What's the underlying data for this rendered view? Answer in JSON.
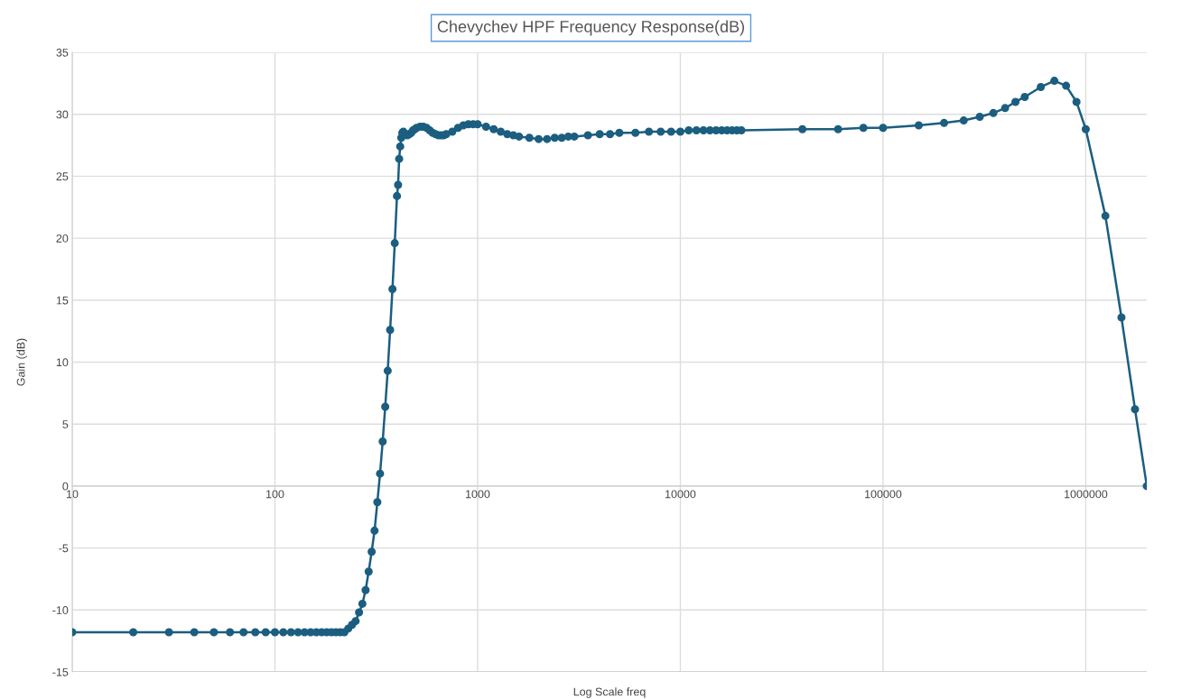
{
  "chart_data": {
    "type": "line",
    "title": "Chevychev HPF Frequency Response(dB)",
    "xlabel": "Log Scale freq",
    "ylabel": "Gain (dB)",
    "log": "x",
    "grid": true,
    "marker": "circle",
    "line_style": "solid",
    "xlim": [
      10,
      2000000
    ],
    "xticks": [
      10,
      100,
      1000,
      10000,
      100000,
      1000000
    ],
    "ylim": [
      -15,
      35
    ],
    "yticks": [
      -15,
      -10,
      -5,
      0,
      5,
      10,
      15,
      20,
      25,
      30,
      35
    ],
    "series": [
      {
        "color": "#1b5e80",
        "x": [
          10,
          20,
          30,
          40,
          50,
          60,
          70,
          80,
          90,
          100,
          110,
          120,
          130,
          140,
          150,
          160,
          170,
          180,
          190,
          200,
          210,
          220,
          230,
          240,
          250,
          260,
          270,
          280,
          290,
          300,
          310,
          320,
          330,
          340,
          350,
          360,
          370,
          380,
          390,
          400,
          405,
          410,
          415,
          420,
          425,
          430,
          440,
          450,
          460,
          470,
          480,
          490,
          500,
          520,
          540,
          560,
          580,
          600,
          620,
          640,
          660,
          680,
          700,
          750,
          800,
          850,
          900,
          950,
          1000,
          1100,
          1200,
          1300,
          1400,
          1500,
          1600,
          1800,
          2000,
          2200,
          2400,
          2600,
          2800,
          3000,
          3500,
          4000,
          4500,
          5000,
          6000,
          7000,
          8000,
          9000,
          10000,
          11000,
          12000,
          13000,
          14000,
          15000,
          16000,
          17000,
          18000,
          19000,
          20000,
          40000,
          60000,
          80000,
          100000,
          150000,
          200000,
          250000,
          300000,
          350000,
          400000,
          450000,
          500000,
          600000,
          700000,
          800000,
          900000,
          1000000,
          1250000,
          1500000,
          1750000,
          2000000
        ],
        "values": [
          -11.8,
          -11.8,
          -11.8,
          -11.8,
          -11.8,
          -11.8,
          -11.8,
          -11.8,
          -11.8,
          -11.8,
          -11.8,
          -11.8,
          -11.8,
          -11.8,
          -11.8,
          -11.8,
          -11.8,
          -11.8,
          -11.8,
          -11.8,
          -11.8,
          -11.8,
          -11.5,
          -11.2,
          -10.9,
          -10.2,
          -9.5,
          -8.4,
          -6.9,
          -5.3,
          -3.6,
          -1.3,
          1.0,
          3.6,
          6.4,
          9.3,
          12.6,
          15.9,
          19.6,
          23.4,
          24.3,
          26.4,
          27.4,
          28.1,
          28.5,
          28.6,
          28.4,
          28.3,
          28.4,
          28.5,
          28.7,
          28.8,
          28.9,
          29.0,
          29.0,
          28.9,
          28.7,
          28.5,
          28.4,
          28.3,
          28.3,
          28.3,
          28.4,
          28.6,
          28.9,
          29.1,
          29.2,
          29.2,
          29.2,
          29.0,
          28.8,
          28.6,
          28.4,
          28.3,
          28.2,
          28.1,
          28.0,
          28.0,
          28.1,
          28.1,
          28.2,
          28.2,
          28.3,
          28.4,
          28.4,
          28.5,
          28.5,
          28.6,
          28.6,
          28.6,
          28.6,
          28.7,
          28.7,
          28.7,
          28.7,
          28.7,
          28.7,
          28.7,
          28.7,
          28.7,
          28.7,
          28.8,
          28.8,
          28.9,
          28.9,
          29.1,
          29.3,
          29.5,
          29.8,
          30.1,
          30.5,
          31.0,
          31.4,
          32.2,
          32.7,
          32.3,
          31.0,
          28.8,
          21.8,
          13.6,
          6.2,
          0
        ]
      }
    ]
  }
}
